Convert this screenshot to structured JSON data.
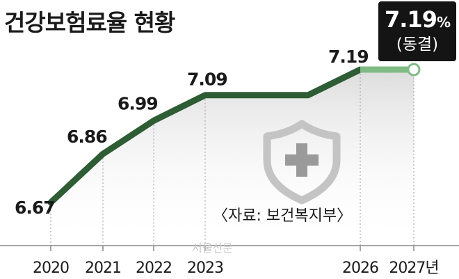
{
  "title": "건강보험료율 현황",
  "source": "〈자료: 보건복지부〉",
  "watermark": "서울신문",
  "callout": {
    "value": "7.19",
    "unit": "%",
    "note": "(동결)"
  },
  "colors": {
    "line": "#2d5c35",
    "frozen_line": "#7fba84",
    "area_top": "#d9d9d9",
    "shield": "#c4c4c4",
    "cross": "#9a9a9a",
    "axis": "#888888"
  },
  "icons": [
    "shield-cross-icon"
  ],
  "chart_data": {
    "type": "line",
    "title": "건강보험료율 현황",
    "x": [
      "2020",
      "2021",
      "2022",
      "2023",
      "2024",
      "2025",
      "2026",
      "2027"
    ],
    "tick_labels": [
      "2020",
      "2021",
      "2022",
      "2023",
      "",
      "",
      "2026",
      "2027년"
    ],
    "series": [
      {
        "values": [
          6.67,
          6.86,
          6.99,
          7.09,
          7.09,
          7.09,
          7.19,
          7.19
        ],
        "data_labels": [
          "6.67",
          "6.86",
          "6.99",
          "7.09",
          "",
          "",
          "7.19",
          ""
        ]
      }
    ],
    "highlight": {
      "from": "2026",
      "to": "2027",
      "label": "7.19%",
      "note": "(동결)"
    },
    "ylim": [
      6.6,
      7.2
    ],
    "grid": false
  }
}
